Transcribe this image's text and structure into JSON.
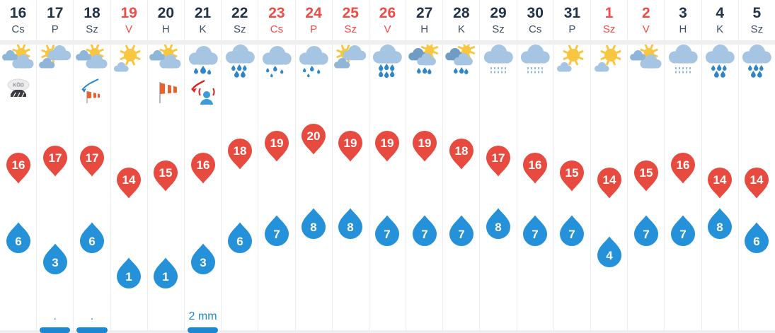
{
  "widget": {
    "name": "21-day-forecast-strip",
    "accent_colors": {
      "max_temp_pin": "#e74a3f",
      "min_temp_drop": "#2591d9",
      "holiday_text": "#f04b44",
      "date_text": "#22334a",
      "precip_text": "#1c87d2"
    }
  },
  "forecast": {
    "days": [
      {
        "date": "16",
        "day": "Cs",
        "holiday": false,
        "icon": "sun-clouds-icon",
        "extra_icon": "fog-icon",
        "max": 16,
        "min": 6,
        "precip": "",
        "precip_bar": false
      },
      {
        "date": "17",
        "day": "P",
        "holiday": false,
        "icon": "clouds-sun-icon",
        "extra_icon": "",
        "max": 17,
        "min": 3,
        "precip": ".",
        "precip_bar": true
      },
      {
        "date": "18",
        "day": "Sz",
        "holiday": false,
        "icon": "sun-clouds-icon",
        "extra_icon": "windsock-gust-icon",
        "max": 17,
        "min": 6,
        "precip": ".",
        "precip_bar": true
      },
      {
        "date": "19",
        "day": "V",
        "holiday": true,
        "icon": "sun-small-cloud-icon",
        "extra_icon": "",
        "max": 14,
        "min": 1,
        "precip": "",
        "precip_bar": false
      },
      {
        "date": "20",
        "day": "H",
        "holiday": false,
        "icon": "sun-clouds-icon",
        "extra_icon": "windsock-icon",
        "max": 15,
        "min": 1,
        "precip": "",
        "precip_bar": false
      },
      {
        "date": "21",
        "day": "K",
        "holiday": false,
        "icon": "rain-icon",
        "extra_icon": "storm-alert-icon",
        "max": 16,
        "min": 3,
        "precip": "2 mm",
        "precip_bar": true
      },
      {
        "date": "22",
        "day": "Sz",
        "holiday": false,
        "icon": "showers-icon",
        "extra_icon": "",
        "max": 18,
        "min": 6,
        "precip": "",
        "precip_bar": false
      },
      {
        "date": "23",
        "day": "Cs",
        "holiday": true,
        "icon": "rain-light-icon",
        "extra_icon": "",
        "max": 19,
        "min": 7,
        "precip": "",
        "precip_bar": false
      },
      {
        "date": "24",
        "day": "P",
        "holiday": true,
        "icon": "rain-light-icon",
        "extra_icon": "",
        "max": 20,
        "min": 8,
        "precip": "",
        "precip_bar": false
      },
      {
        "date": "25",
        "day": "Sz",
        "holiday": true,
        "icon": "clouds-sun-icon",
        "extra_icon": "",
        "max": 19,
        "min": 8,
        "precip": "",
        "precip_bar": false
      },
      {
        "date": "26",
        "day": "V",
        "holiday": true,
        "icon": "showers-heavy-icon",
        "extra_icon": "",
        "max": 19,
        "min": 7,
        "precip": "",
        "precip_bar": false
      },
      {
        "date": "27",
        "day": "H",
        "holiday": false,
        "icon": "sun-clouds-rain-icon",
        "extra_icon": "",
        "max": 19,
        "min": 7,
        "precip": "",
        "precip_bar": false
      },
      {
        "date": "28",
        "day": "K",
        "holiday": false,
        "icon": "sun-clouds-rain-icon",
        "extra_icon": "",
        "max": 18,
        "min": 7,
        "precip": "",
        "precip_bar": false
      },
      {
        "date": "29",
        "day": "Sz",
        "holiday": false,
        "icon": "drizzle-icon",
        "extra_icon": "",
        "max": 17,
        "min": 8,
        "precip": "",
        "precip_bar": false
      },
      {
        "date": "30",
        "day": "Cs",
        "holiday": false,
        "icon": "drizzle-icon",
        "extra_icon": "",
        "max": 16,
        "min": 7,
        "precip": "",
        "precip_bar": false
      },
      {
        "date": "31",
        "day": "P",
        "holiday": false,
        "icon": "sun-small-cloud-icon",
        "extra_icon": "",
        "max": 15,
        "min": 7,
        "precip": "",
        "precip_bar": false
      },
      {
        "date": "1",
        "day": "Sz",
        "holiday": true,
        "icon": "sun-small-cloud-icon",
        "extra_icon": "",
        "max": 14,
        "min": 4,
        "precip": "",
        "precip_bar": false
      },
      {
        "date": "2",
        "day": "V",
        "holiday": true,
        "icon": "sun-clouds-icon",
        "extra_icon": "",
        "max": 15,
        "min": 7,
        "precip": "",
        "precip_bar": false
      },
      {
        "date": "3",
        "day": "H",
        "holiday": false,
        "icon": "drizzle-icon",
        "extra_icon": "",
        "max": 16,
        "min": 7,
        "precip": "",
        "precip_bar": false
      },
      {
        "date": "4",
        "day": "K",
        "holiday": false,
        "icon": "showers-icon",
        "extra_icon": "",
        "max": 14,
        "min": 8,
        "precip": "",
        "precip_bar": false
      },
      {
        "date": "5",
        "day": "Sz",
        "holiday": false,
        "icon": "showers-icon",
        "extra_icon": "",
        "max": 14,
        "min": 6,
        "precip": "",
        "precip_bar": false
      }
    ],
    "fog_label": "KÖD"
  }
}
